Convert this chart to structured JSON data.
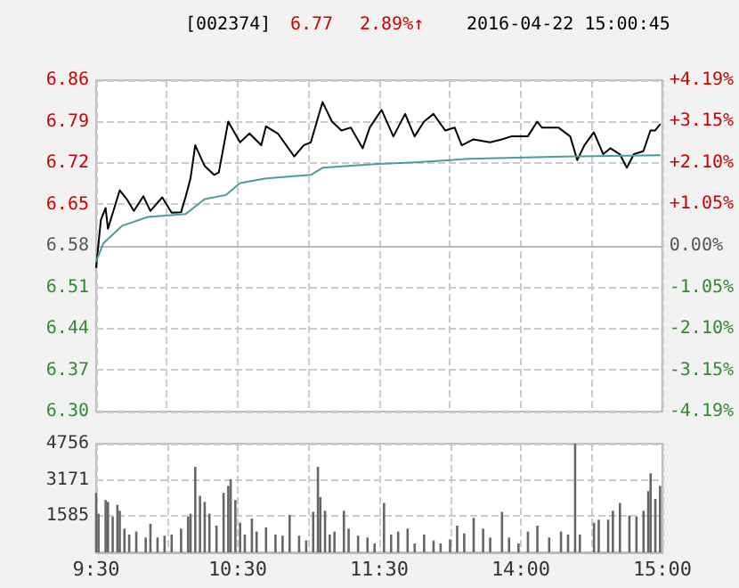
{
  "chart_data": [
    {
      "type": "line",
      "title": "[002374]",
      "annotations": [
        "6.77",
        "2.89%↑",
        "2016-04-22 15:00:45"
      ],
      "categories": [
        null,
        null,
        null,
        null,
        null,
        null,
        null,
        null,
        null,
        null,
        null,
        null,
        null,
        null,
        null,
        null,
        null,
        null,
        null,
        null,
        null,
        null,
        null,
        null,
        null,
        null,
        null,
        null,
        null,
        null,
        null,
        null,
        null,
        null,
        null,
        null,
        null,
        null,
        null,
        null,
        null,
        null,
        null,
        null,
        null,
        null,
        null,
        null,
        null,
        null,
        null,
        null,
        null,
        null,
        null,
        null,
        null,
        null,
        null,
        null,
        null,
        null,
        null,
        null,
        null,
        null,
        null,
        null,
        null,
        null,
        null,
        null,
        null,
        null,
        null,
        null,
        null,
        null,
        null,
        null,
        null,
        null,
        null,
        null,
        null,
        null,
        null,
        null,
        null,
        null,
        null,
        null,
        null,
        null,
        null,
        null,
        null,
        null,
        null,
        null,
        null,
        null,
        null,
        null,
        null,
        null,
        null,
        null,
        null,
        null,
        null,
        null,
        null,
        null,
        null,
        null,
        null,
        null,
        null,
        null,
        null,
        null,
        null,
        null,
        null,
        null,
        null,
        null,
        null,
        null,
        null,
        null,
        null,
        null,
        null,
        null,
        null,
        null,
        null,
        null,
        null,
        null,
        null,
        null,
        null,
        null,
        null,
        null,
        null,
        null,
        null,
        null,
        null,
        null,
        null,
        null,
        null,
        null,
        null,
        null,
        null,
        null,
        null,
        null,
        null,
        null,
        null,
        null,
        null,
        null,
        null,
        null,
        null,
        null,
        null,
        null,
        null,
        null,
        null,
        null,
        null,
        null,
        null,
        null,
        null,
        null,
        null,
        null,
        null,
        null,
        null,
        null,
        null,
        null,
        null,
        null,
        null,
        null,
        null,
        null,
        null,
        null,
        null,
        null,
        null,
        null,
        null,
        null,
        null,
        null,
        null,
        null,
        null,
        null,
        null,
        null,
        null,
        null,
        null,
        null,
        null,
        null,
        null,
        null,
        null,
        null,
        null,
        null,
        null,
        null,
        null,
        null,
        null,
        null,
        null,
        null,
        null,
        null,
        null,
        null,
        null
      ],
      "series": [
        {
          "color": "#000000",
          "values": [
            6.544,
            null,
            6.624,
            null,
            6.644,
            6.609,
            null,
            null,
            null,
            null,
            6.674,
            null,
            null,
            6.659,
            null,
            null,
            6.639,
            null,
            null,
            null,
            6.664,
            null,
            null,
            6.639,
            null,
            null,
            null,
            null,
            6.662,
            null,
            null,
            null,
            6.636,
            null,
            null,
            null,
            6.637,
            null,
            6.664,
            null,
            6.694,
            null,
            6.75,
            null,
            null,
            null,
            6.715,
            null,
            null,
            null,
            6.7,
            null,
            6.704,
            null,
            null,
            null,
            6.79,
            null,
            null,
            null,
            null,
            6.755,
            null,
            null,
            null,
            6.77,
            null,
            null,
            null,
            null,
            6.75,
            null,
            6.782,
            null,
            null,
            null,
            null,
            6.77,
            null,
            null,
            null,
            null,
            null,
            null,
            6.731,
            null,
            null,
            null,
            6.75,
            null,
            null,
            6.755,
            null,
            null,
            null,
            null,
            6.823,
            null,
            null,
            null,
            6.79,
            null,
            null,
            null,
            6.775,
            null,
            null,
            null,
            6.78,
            null,
            null,
            null,
            null,
            6.745,
            null,
            null,
            6.78,
            null,
            null,
            null,
            null,
            6.81,
            null,
            null,
            null,
            null,
            6.765,
            null,
            null,
            null,
            null,
            6.803,
            null,
            null,
            null,
            6.765,
            null,
            null,
            null,
            6.79,
            null,
            null,
            null,
            6.803,
            null,
            null,
            null,
            null,
            6.775,
            null,
            null,
            null,
            6.78,
            null,
            null,
            6.75,
            null,
            null,
            null,
            null,
            6.76,
            null,
            null,
            null,
            null,
            null,
            null,
            6.755,
            null,
            null,
            null,
            null,
            6.76,
            null,
            null,
            null,
            6.765,
            null,
            null,
            null,
            null,
            null,
            null,
            6.765,
            null,
            null,
            null,
            6.79,
            null,
            6.78,
            null,
            null,
            null,
            null,
            null,
            null,
            6.78,
            null,
            null,
            null,
            null,
            6.765,
            null,
            null,
            6.725,
            null,
            null,
            6.75,
            null,
            null,
            null,
            6.772,
            null,
            null,
            null,
            6.735,
            null,
            null,
            6.745,
            null,
            null,
            null,
            6.735,
            null,
            null,
            6.712,
            null,
            null,
            6.735,
            null,
            null,
            null,
            6.74,
            null,
            null,
            6.775,
            null,
            6.775,
            null,
            6.785,
            null
          ]
        },
        {
          "color": "#4f9a9a",
          "values": [
            6.554,
            null,
            null,
            6.584,
            null,
            null,
            null,
            null,
            null,
            null,
            null,
            6.614,
            null,
            null,
            null,
            null,
            null,
            null,
            null,
            null,
            null,
            null,
            6.629,
            null,
            null,
            null,
            null,
            null,
            null,
            null,
            null,
            null,
            null,
            null,
            null,
            null,
            null,
            null,
            6.634,
            null,
            null,
            null,
            null,
            null,
            null,
            null,
            6.659,
            null,
            null,
            null,
            null,
            null,
            null,
            null,
            null,
            6.666,
            null,
            null,
            null,
            null,
            null,
            6.686,
            null,
            null,
            null,
            null,
            null,
            null,
            null,
            null,
            null,
            null,
            6.694,
            null,
            null,
            null,
            null,
            null,
            null,
            null,
            null,
            null,
            null,
            null,
            null,
            null,
            null,
            null,
            null,
            null,
            null,
            6.7,
            null,
            null,
            null,
            null,
            6.712,
            null,
            null,
            null,
            null,
            null,
            null,
            null,
            null,
            null,
            null,
            null,
            null,
            null,
            null,
            null,
            null,
            null,
            null,
            null,
            null,
            null,
            6.718,
            null,
            null,
            null,
            null,
            null,
            null,
            null,
            null,
            null,
            null,
            null,
            null,
            null,
            null,
            null,
            null,
            6.721,
            null,
            null,
            null,
            null,
            null,
            null,
            null,
            null,
            null,
            null,
            null,
            null,
            null,
            null,
            null,
            null,
            null,
            null,
            null,
            null,
            null,
            null,
            6.727,
            null,
            null,
            null,
            null,
            null,
            null,
            null,
            null,
            null,
            null,
            null,
            null,
            null,
            null,
            null,
            null,
            null,
            null,
            null,
            null,
            null,
            null,
            null,
            null,
            null,
            null,
            null,
            null,
            null,
            null,
            null,
            null,
            null,
            null,
            null,
            null,
            null,
            null,
            null,
            6.731,
            null,
            null,
            null,
            null,
            null,
            null,
            null,
            null,
            null,
            null,
            null,
            null,
            null,
            null,
            null,
            null,
            null,
            null,
            null,
            null,
            null,
            null,
            null,
            null,
            null,
            null,
            null,
            null,
            null,
            null,
            null,
            null,
            null,
            null,
            null,
            null,
            null,
            null,
            null,
            null,
            6.733,
            null
          ]
        }
      ],
      "ylim": [
        6.3,
        6.86
      ],
      "yticks": [
        {
          "value": 6.3,
          "label": "6.30"
        },
        {
          "value": 6.37,
          "label": "6.37"
        },
        {
          "value": 6.44,
          "label": "6.44"
        },
        {
          "value": 6.51,
          "label": "6.51"
        },
        {
          "value": 6.58,
          "label": "6.58"
        },
        {
          "value": 6.65,
          "label": "6.65"
        },
        {
          "value": 6.72,
          "label": "6.72"
        },
        {
          "value": 6.79,
          "label": "6.79"
        },
        {
          "value": 6.86,
          "label": "6.86"
        }
      ],
      "y2lim": [
        -4.19,
        4.19
      ],
      "y2ticks": [
        {
          "value": -4.19,
          "label": "-4.19%"
        },
        {
          "value": -3.15,
          "label": "-3.15%"
        },
        {
          "value": -2.1,
          "label": "-2.10%"
        },
        {
          "value": -1.05,
          "label": "-1.05%"
        },
        {
          "value": 0,
          "label": "0.00%"
        },
        {
          "value": 1.05,
          "label": "+1.05%"
        },
        {
          "value": 2.1,
          "label": "+2.10%"
        },
        {
          "value": 3.15,
          "label": "+3.15%"
        },
        {
          "value": 4.19,
          "label": "+4.19%"
        }
      ],
      "tick_labels": "y",
      "grid": true,
      "line_style": "solid"
    },
    {
      "type": "bar",
      "color": "#666666",
      "categories": [
        "9:30",
        null,
        null,
        null,
        null,
        null,
        null,
        null,
        null,
        null,
        null,
        null,
        null,
        null,
        null,
        null,
        null,
        null,
        null,
        null,
        null,
        null,
        null,
        null,
        null,
        null,
        null,
        null,
        null,
        null,
        null,
        null,
        null,
        null,
        null,
        null,
        null,
        null,
        null,
        null,
        null,
        null,
        null,
        null,
        null,
        null,
        null,
        null,
        null,
        null,
        null,
        null,
        null,
        null,
        null,
        null,
        null,
        null,
        null,
        null,
        "10:30",
        null,
        null,
        null,
        null,
        null,
        null,
        null,
        null,
        null,
        null,
        null,
        null,
        null,
        null,
        null,
        null,
        null,
        null,
        null,
        null,
        null,
        null,
        null,
        null,
        null,
        null,
        null,
        null,
        null,
        null,
        null,
        null,
        null,
        null,
        null,
        null,
        null,
        null,
        null,
        null,
        null,
        null,
        null,
        null,
        null,
        null,
        null,
        null,
        null,
        null,
        null,
        null,
        null,
        null,
        null,
        null,
        null,
        null,
        null,
        "11:30",
        null,
        null,
        null,
        null,
        null,
        null,
        null,
        null,
        null,
        null,
        null,
        null,
        null,
        null,
        null,
        null,
        null,
        null,
        null,
        null,
        null,
        null,
        null,
        null,
        null,
        null,
        null,
        null,
        null,
        null,
        null,
        null,
        null,
        null,
        null,
        null,
        null,
        null,
        null,
        null,
        null,
        null,
        null,
        null,
        null,
        null,
        null,
        null,
        null,
        null,
        null,
        null,
        null,
        null,
        null,
        null,
        null,
        null,
        null,
        "14:00",
        null,
        null,
        null,
        null,
        null,
        null,
        null,
        null,
        null,
        null,
        null,
        null,
        null,
        null,
        null,
        null,
        null,
        null,
        null,
        null,
        null,
        null,
        null,
        null,
        null,
        null,
        null,
        null,
        null,
        null,
        null,
        null,
        null,
        null,
        null,
        null,
        null,
        null,
        null,
        null,
        null,
        null,
        null,
        null,
        null,
        null,
        null,
        null,
        null,
        null,
        null,
        null,
        null,
        null,
        null,
        null,
        null,
        null,
        null,
        "15:00"
      ],
      "values": [
        2600,
        1690,
        null,
        null,
        2290,
        2210,
        null,
        1560,
        null,
        2080,
        1820,
        null,
        1040,
        null,
        780,
        null,
        null,
        910,
        null,
        null,
        null,
        650,
        null,
        1250,
        null,
        null,
        650,
        null,
        null,
        730,
        null,
        null,
        780,
        null,
        null,
        null,
        1040,
        null,
        null,
        1560,
        1690,
        null,
        3740,
        null,
        2470,
        null,
        2210,
        null,
        1690,
        null,
        null,
        1170,
        null,
        null,
        2600,
        null,
        2910,
        3200,
        null,
        2290,
        null,
        1300,
        null,
        780,
        null,
        null,
        1480,
        null,
        910,
        null,
        null,
        null,
        1090,
        null,
        null,
        null,
        780,
        null,
        null,
        730,
        null,
        null,
        1640,
        null,
        null,
        null,
        730,
        null,
        null,
        520,
        null,
        null,
        1770,
        null,
        3740,
        2420,
        null,
        1820,
        null,
        780,
        null,
        910,
        null,
        null,
        null,
        1820,
        null,
        1040,
        null,
        null,
        null,
        730,
        null,
        null,
        null,
        650,
        null,
        null,
        390,
        null,
        null,
        null,
        2160,
        null,
        null,
        780,
        null,
        null,
        910,
        null,
        null,
        null,
        1040,
        null,
        null,
        390,
        null,
        null,
        null,
        780,
        null,
        null,
        null,
        520,
        null,
        null,
        390,
        null,
        null,
        null,
        570,
        null,
        null,
        1170,
        null,
        null,
        830,
        null,
        null,
        null,
        1510,
        null,
        null,
        null,
        1040,
        null,
        null,
        650,
        null,
        null,
        null,
        null,
        1770,
        null,
        null,
        650,
        null,
        null,
        null,
        390,
        null,
        null,
        null,
        910,
        null,
        null,
        null,
        1170,
        null,
        null,
        null,
        null,
        650,
        null,
        null,
        null,
        null,
        910,
        null,
        null,
        780,
        null,
        null,
        4756,
        null,
        780,
        null,
        null,
        null,
        null,
        null,
        1300,
        null,
        1430,
        null,
        null,
        null,
        1430,
        null,
        1820,
        null,
        null,
        2160,
        null,
        null,
        null,
        1610,
        null,
        null,
        1560,
        null,
        null,
        1820,
        null,
        2680,
        3460,
        null,
        2340,
        null,
        2910,
        null
      ],
      "ylim": [
        0,
        4756
      ],
      "yticks": [
        {
          "value": 0,
          "label": null
        },
        1585,
        3171,
        4756
      ],
      "grid": true
    }
  ]
}
